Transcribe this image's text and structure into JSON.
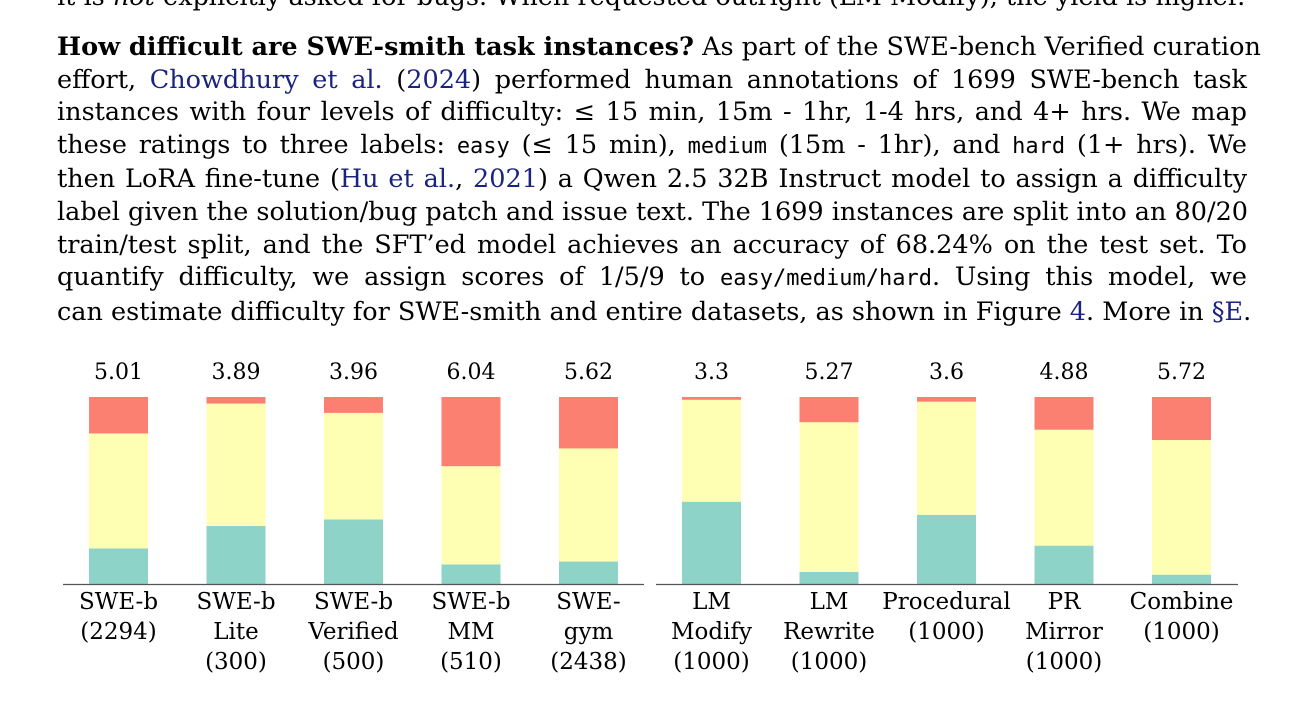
{
  "top_line": {
    "pre": "it is ",
    "em": "not",
    "post": " explicitly asked for bugs. When requested outright (LM Modify), the yield is higher."
  },
  "paragraph": {
    "heading": "How difficult are SWE-smith task instances?",
    "l1_rest": " As part of the SWE-bench Verified curation",
    "l2_a": "effort, ",
    "l2_cite": "Chowdhury et al.",
    "l2_b": " (",
    "l2_year": "2024",
    "l2_c": ") performed human annotations of 1699 SWE-bench task",
    "l3": "instances with four levels of difficulty: ≤ 15 min, 15m - 1hr, 1-4 hrs, and 4+ hrs. We map",
    "l4_a": "these ratings to three labels: ",
    "l4_easy": "easy",
    "l4_b": " (≤ 15 min), ",
    "l4_medium": "medium",
    "l4_c": " (15m - 1hr), and ",
    "l4_hard": "hard",
    "l4_d": " (1+ hrs). We",
    "l5_a": "then LoRA fine-tune (",
    "l5_cite": "Hu et al.",
    "l5_b": ", ",
    "l5_year": "2021",
    "l5_c": ") a Qwen 2.5 32B Instruct model to assign a difficulty",
    "l6": "label given the solution/bug patch and issue text. The 1699 instances are split into an 80/20",
    "l7": "train/test split, and the SFT’ed model achieves an accuracy of 68.24% on the test set. To",
    "l8_a": "quantify difficulty, we assign scores of 1/5/9 to ",
    "l8_tt": "easy/medium/hard",
    "l8_b": ". Using this model, we",
    "l9_a": "can estimate difficulty for SWE-smith and entire datasets, as shown in Figure ",
    "l9_fig": "4",
    "l9_b": ". More in ",
    "l9_sec": "§E",
    "l9_c": "."
  },
  "chart_data": {
    "type": "bar",
    "stacked": true,
    "normalized": true,
    "colors": {
      "easy": "#8dd3c7",
      "medium": "#ffffb3",
      "hard": "#fb8072"
    },
    "groups": [
      {
        "bars": [
          {
            "label": [
              "SWE-b",
              "(2294)"
            ],
            "score": "5.01",
            "easy": 0.19,
            "medium": 0.615,
            "hard": 0.195
          },
          {
            "label": [
              "SWE-b",
              "Lite",
              "(300)"
            ],
            "score": "3.89",
            "easy": 0.31,
            "medium": 0.655,
            "hard": 0.035
          },
          {
            "label": [
              "SWE-b",
              "Verified",
              "(500)"
            ],
            "score": "3.96",
            "easy": 0.345,
            "medium": 0.57,
            "hard": 0.085
          },
          {
            "label": [
              "SWE-b",
              "MM",
              "(510)"
            ],
            "score": "6.04",
            "easy": 0.105,
            "medium": 0.525,
            "hard": 0.37
          },
          {
            "label": [
              "SWE-",
              "gym",
              "(2438)"
            ],
            "score": "5.62",
            "easy": 0.12,
            "medium": 0.605,
            "hard": 0.275
          }
        ]
      },
      {
        "bars": [
          {
            "label": [
              "LM",
              "Modify",
              "(1000)"
            ],
            "score": "3.3",
            "easy": 0.44,
            "medium": 0.545,
            "hard": 0.015
          },
          {
            "label": [
              "LM",
              "Rewrite",
              "(1000)"
            ],
            "score": "5.27",
            "easy": 0.065,
            "medium": 0.8,
            "hard": 0.135
          },
          {
            "label": [
              "Procedural",
              "(1000)"
            ],
            "score": "3.6",
            "easy": 0.37,
            "medium": 0.605,
            "hard": 0.025
          },
          {
            "label": [
              "PR",
              "Mirror",
              "(1000)"
            ],
            "score": "4.88",
            "easy": 0.205,
            "medium": 0.62,
            "hard": 0.175
          },
          {
            "label": [
              "Combine",
              "(1000)"
            ],
            "score": "5.72",
            "easy": 0.05,
            "medium": 0.72,
            "hard": 0.23
          }
        ]
      }
    ]
  }
}
